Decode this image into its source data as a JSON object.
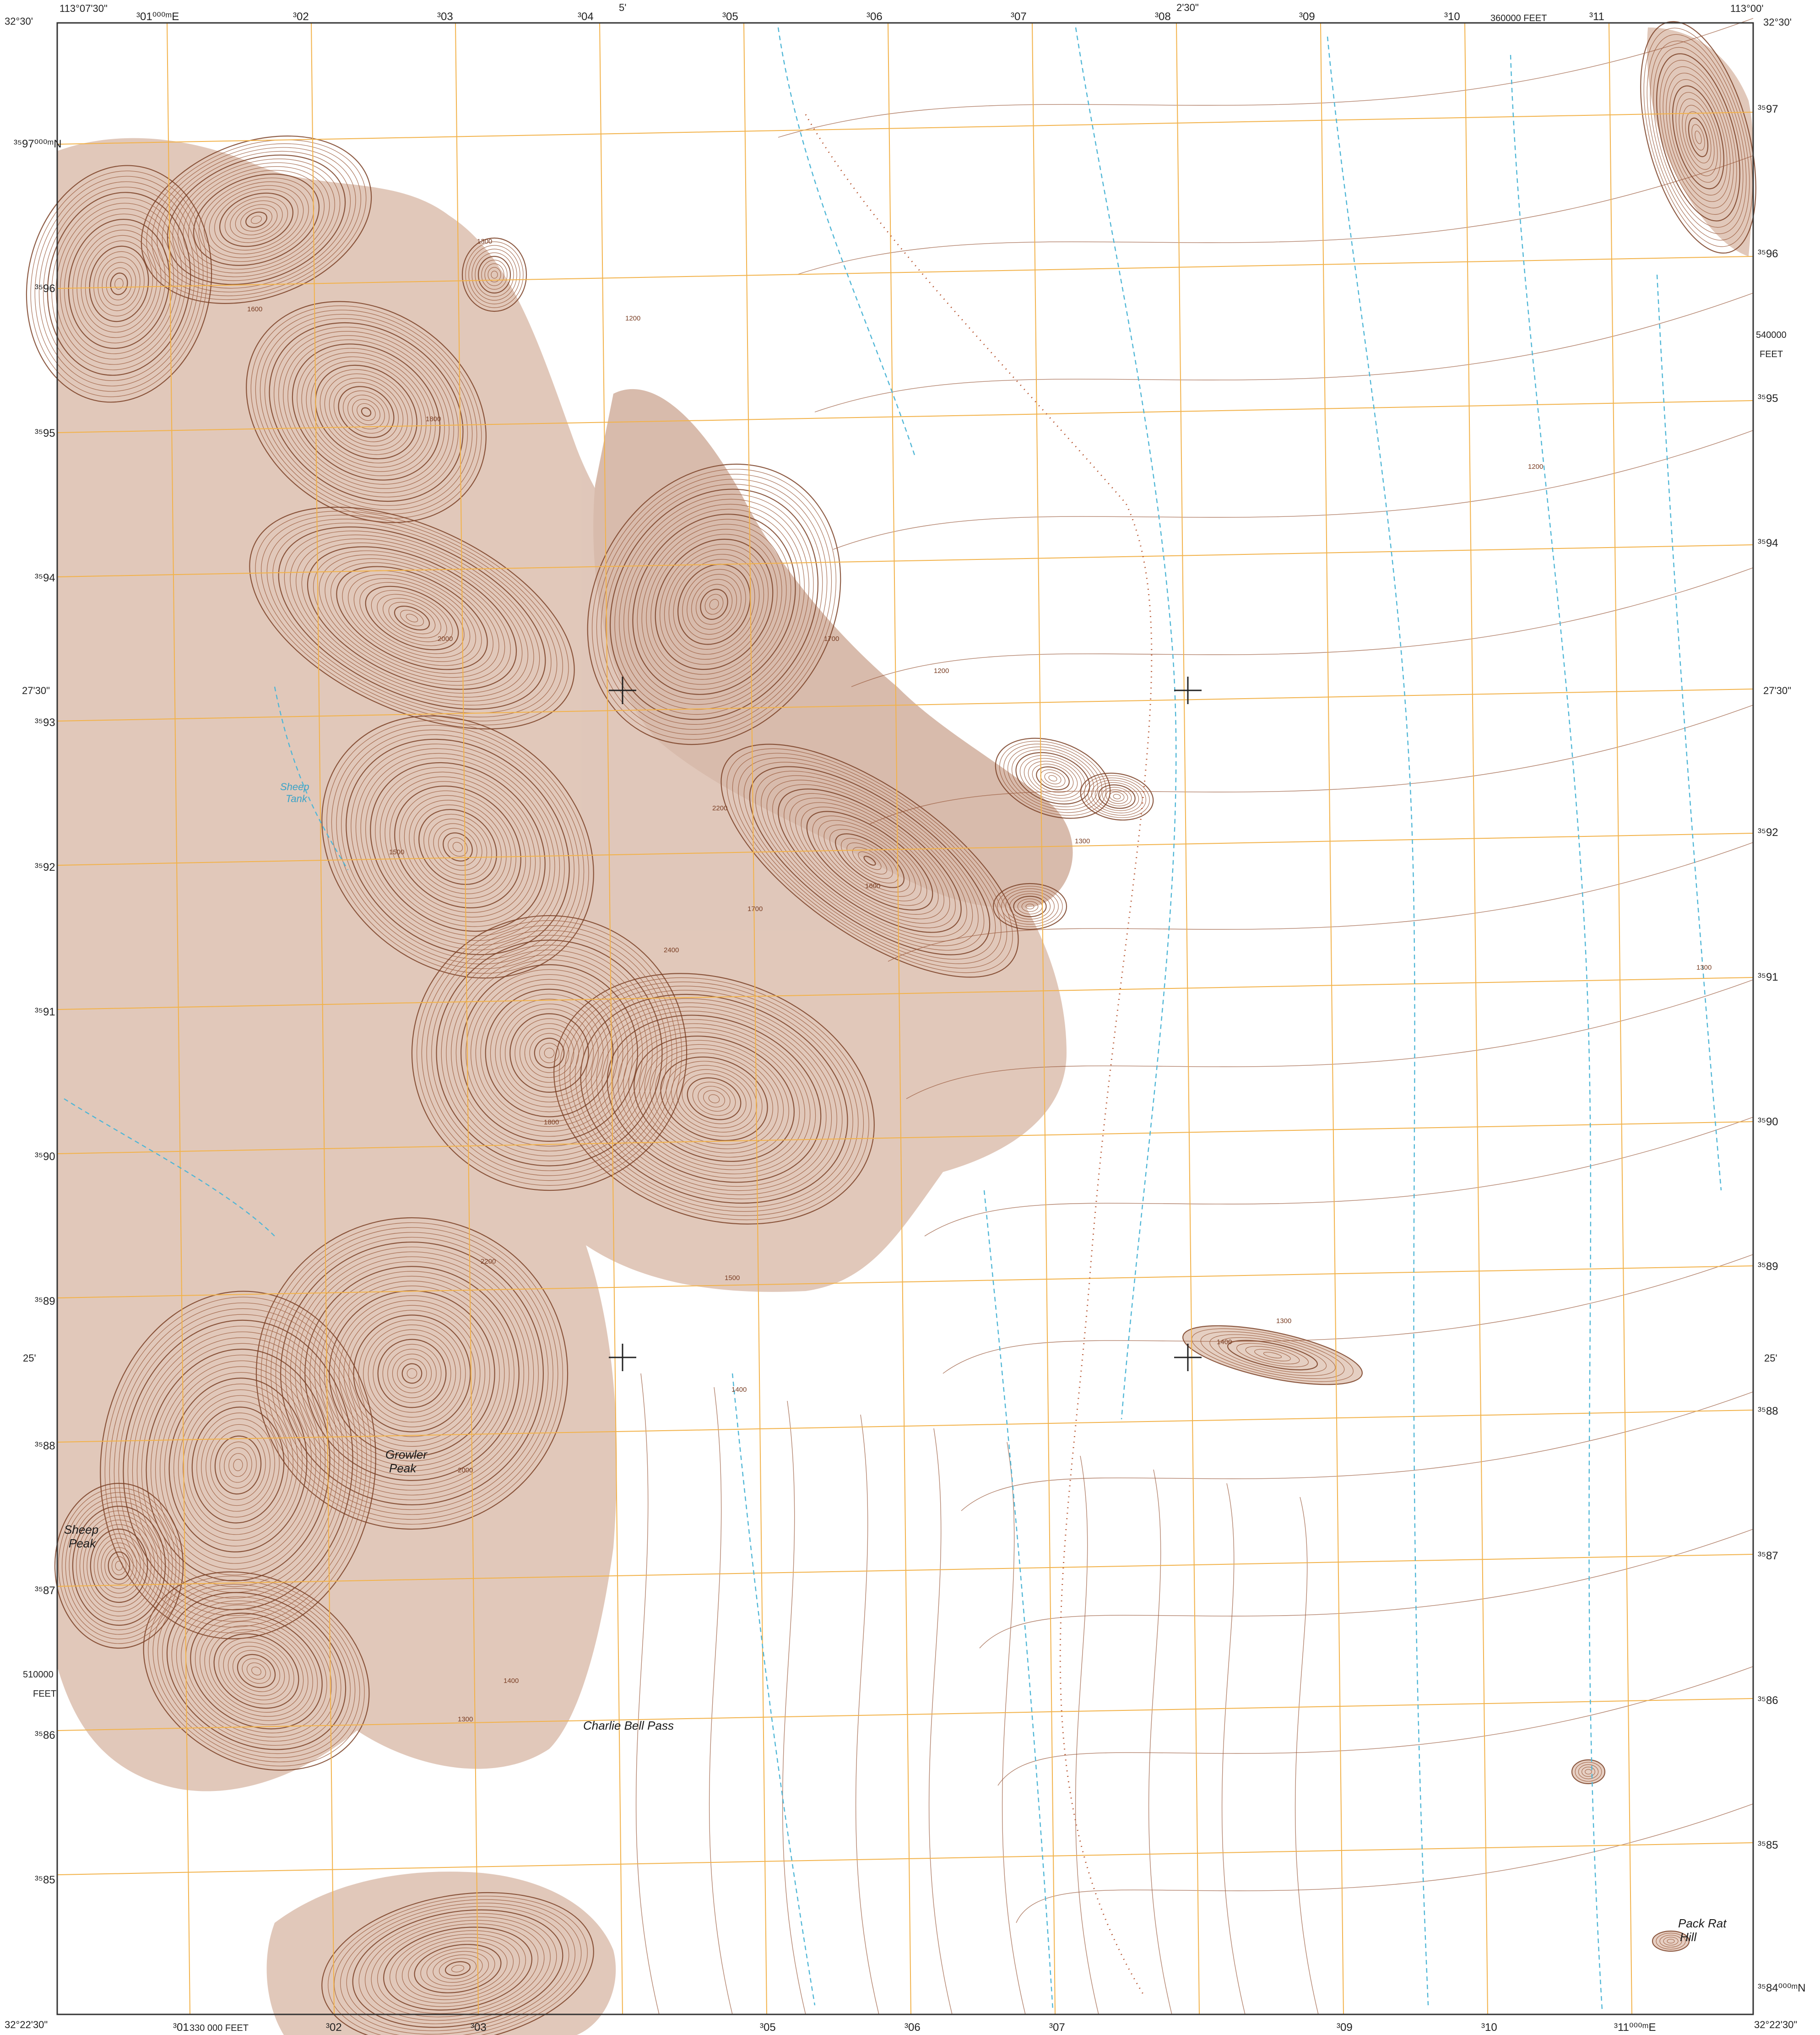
{
  "colors": {
    "contour": "#9a5a3c",
    "contour_index": "#7a3f25",
    "relief_fill": "#c89a82",
    "grid": "#f2b24a",
    "stream": "#4fb6d6",
    "trail": "#b5532e",
    "neatline": "#333333"
  },
  "corners": {
    "top_left_lon": "113°07'30\"",
    "top_left_lat": "32°30'",
    "top_right_lon": "113°00'",
    "top_right_lat": "32°30'",
    "bottom_left_lat": "32°22'30\"",
    "bottom_right_lat": "32°22'30\""
  },
  "top_labels": {
    "easting_first": "³01⁰⁰⁰ᵐE",
    "eastings": [
      "³02",
      "³03",
      "³04",
      "³05",
      "³06",
      "³07",
      "³08",
      "³09",
      "³10",
      "³11"
    ],
    "minute_5": "5'",
    "minute_230": "2'30\"",
    "feet_label": "360000 FEET"
  },
  "bottom_labels": {
    "easting_first": "³01",
    "feet_label": "330 000 FEET",
    "eastings": [
      "³02",
      "³03",
      "³05",
      "³06",
      "³07",
      "³09",
      "³10"
    ],
    "easting_last": "³11⁰⁰⁰ᵐE"
  },
  "left_labels": {
    "northing_first": "³⁵97⁰⁰⁰ᵐN",
    "northings": [
      "³⁵96",
      "³⁵95",
      "³⁵94",
      "³⁵93",
      "³⁵92",
      "³⁵91",
      "³⁵90",
      "³⁵89",
      "³⁵88",
      "³⁵87",
      "³⁵86",
      "³⁵85"
    ],
    "lat_2730": "27'30\"",
    "lat_25": "25'",
    "feet_value": "510000",
    "feet_unit": "FEET"
  },
  "right_labels": {
    "northings": [
      "³⁵97",
      "³⁵96",
      "³⁵95",
      "³⁵94",
      "³⁵92",
      "³⁵91",
      "³⁵90",
      "³⁵89",
      "³⁵88",
      "³⁵87",
      "³⁵86",
      "³⁵85"
    ],
    "northing_last": "³⁵84⁰⁰⁰ᵐN",
    "lat_2730": "27'30\"",
    "lat_25": "25'",
    "feet_value": "540000",
    "feet_unit": "FEET"
  },
  "places": {
    "growler_peak_1": "Growler",
    "growler_peak_2": "Peak",
    "sheep_peak_1": "Sheep",
    "sheep_peak_2": "Peak",
    "charlie_bell_pass": "Charlie Bell Pass",
    "pack_rat_hill_1": "Pack Rat",
    "pack_rat_hill_2": "Hill",
    "sheep_tank_1": "Sheep",
    "sheep_tank_2": "Tank"
  },
  "contour_labels": [
    "1200",
    "1300",
    "1400",
    "1500",
    "1600",
    "1700",
    "1800",
    "2000",
    "2200",
    "2400"
  ]
}
